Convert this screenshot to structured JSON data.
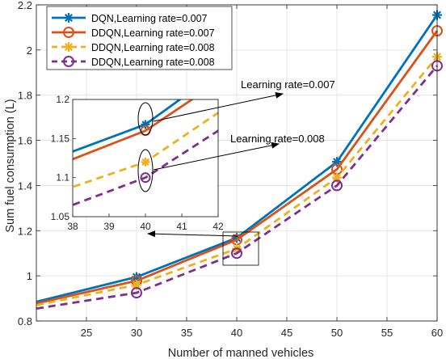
{
  "chart_data": {
    "type": "line",
    "xlabel": "Number of manned vehicles",
    "ylabel": "Sum fuel consumption (L)",
    "xlim": [
      20,
      60
    ],
    "ylim": [
      0.8,
      2.2
    ],
    "xticks": [
      25,
      30,
      35,
      40,
      45,
      50,
      55,
      60
    ],
    "yticks": [
      0.8,
      1,
      1.2,
      1.4,
      1.6,
      1.8,
      2,
      2.2
    ],
    "grid": true,
    "legend_position": "top-left",
    "x": [
      20,
      30,
      40,
      50,
      60
    ],
    "series": [
      {
        "name": "DQN,Learning rate=0.007",
        "color": "#0072BD",
        "dash": "solid",
        "marker": "asterisk",
        "values": [
          0.885,
          0.995,
          1.168,
          1.505,
          2.155
        ]
      },
      {
        "name": "DDQN,Learning rate=0.007",
        "color": "#D95319",
        "dash": "solid",
        "marker": "circle",
        "values": [
          0.878,
          0.978,
          1.16,
          1.472,
          2.085
        ]
      },
      {
        "name": "DDQN,Learning rate=0.008",
        "color": "#EDB120",
        "dash": "dashed",
        "marker": "asterisk",
        "values": [
          0.87,
          0.96,
          1.12,
          1.435,
          1.97
        ]
      },
      {
        "name": "DDQN,Learning rate=0.008",
        "color": "#7E2F8E",
        "dash": "dashed",
        "marker": "circle",
        "values": [
          0.855,
          0.925,
          1.1,
          1.4,
          1.93
        ]
      }
    ],
    "annotations": [
      {
        "text": "Learning rate=0.007"
      },
      {
        "text": "Learning rate=0.008"
      }
    ],
    "inset": {
      "xlim": [
        38,
        42
      ],
      "ylim": [
        1.05,
        1.2
      ],
      "xticks": [
        38,
        39,
        40,
        41,
        42
      ],
      "yticks": [
        1.05,
        1.1,
        1.15,
        1.2
      ]
    }
  }
}
